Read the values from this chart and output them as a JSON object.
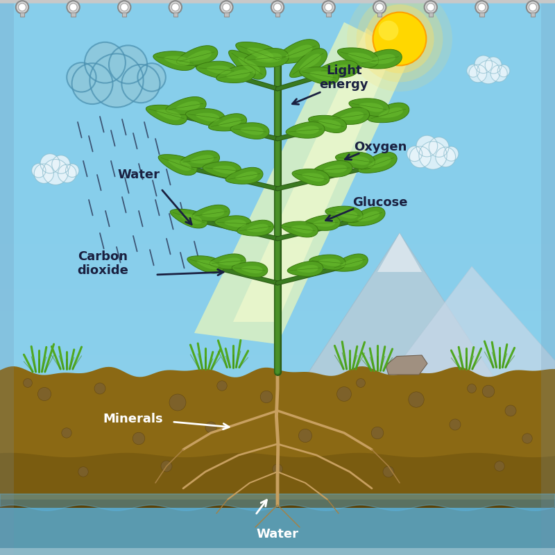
{
  "sky_color": "#87CEEB",
  "sky_bottom": "#A8D8EA",
  "mountain_color": "#B8CCD8",
  "mountain_edge": "#A0BCCC",
  "ground_color": "#8B6914",
  "ground_dark": "#6B5010",
  "ground_light": "#A07820",
  "water_color": "#5BB8E8",
  "water_dark": "#3A9AC8",
  "sun_color": "#FFD700",
  "sun_inner": "#FFEC40",
  "beam_color": "#FFFFB0",
  "cloud_rain_fill": "#8EC8DC",
  "cloud_rain_edge": "#4A90B0",
  "cloud_white_fill": "#E8F4FA",
  "cloud_white_edge": "#88BBCC",
  "rain_color": "#304060",
  "stem_color": "#3A7A20",
  "stem_dark": "#2A5A14",
  "leaf_light": "#6DC030",
  "leaf_mid": "#52A020",
  "leaf_dark": "#3A7A10",
  "root_color": "#C8A060",
  "root_dark": "#A88040",
  "grass_color": "#50A820",
  "grass_dark": "#3A8010",
  "rock_color": "#A09080",
  "rock_edge": "#706050",
  "soil_pebble": "#7A6030",
  "text_dark": "#1A2040",
  "arrow_dark": "#1A2040",
  "white_text": "#FFFFFF",
  "hook_silver": "#B8B8B8",
  "hook_dark": "#888888",
  "labels": {
    "water_rain": "Water",
    "carbon_dioxide": "Carbon\ndioxide",
    "light_energy": "Light\nenergy",
    "oxygen": "Oxygen",
    "glucose": "Glucose",
    "minerals": "Minerals",
    "water_root": "Water"
  }
}
